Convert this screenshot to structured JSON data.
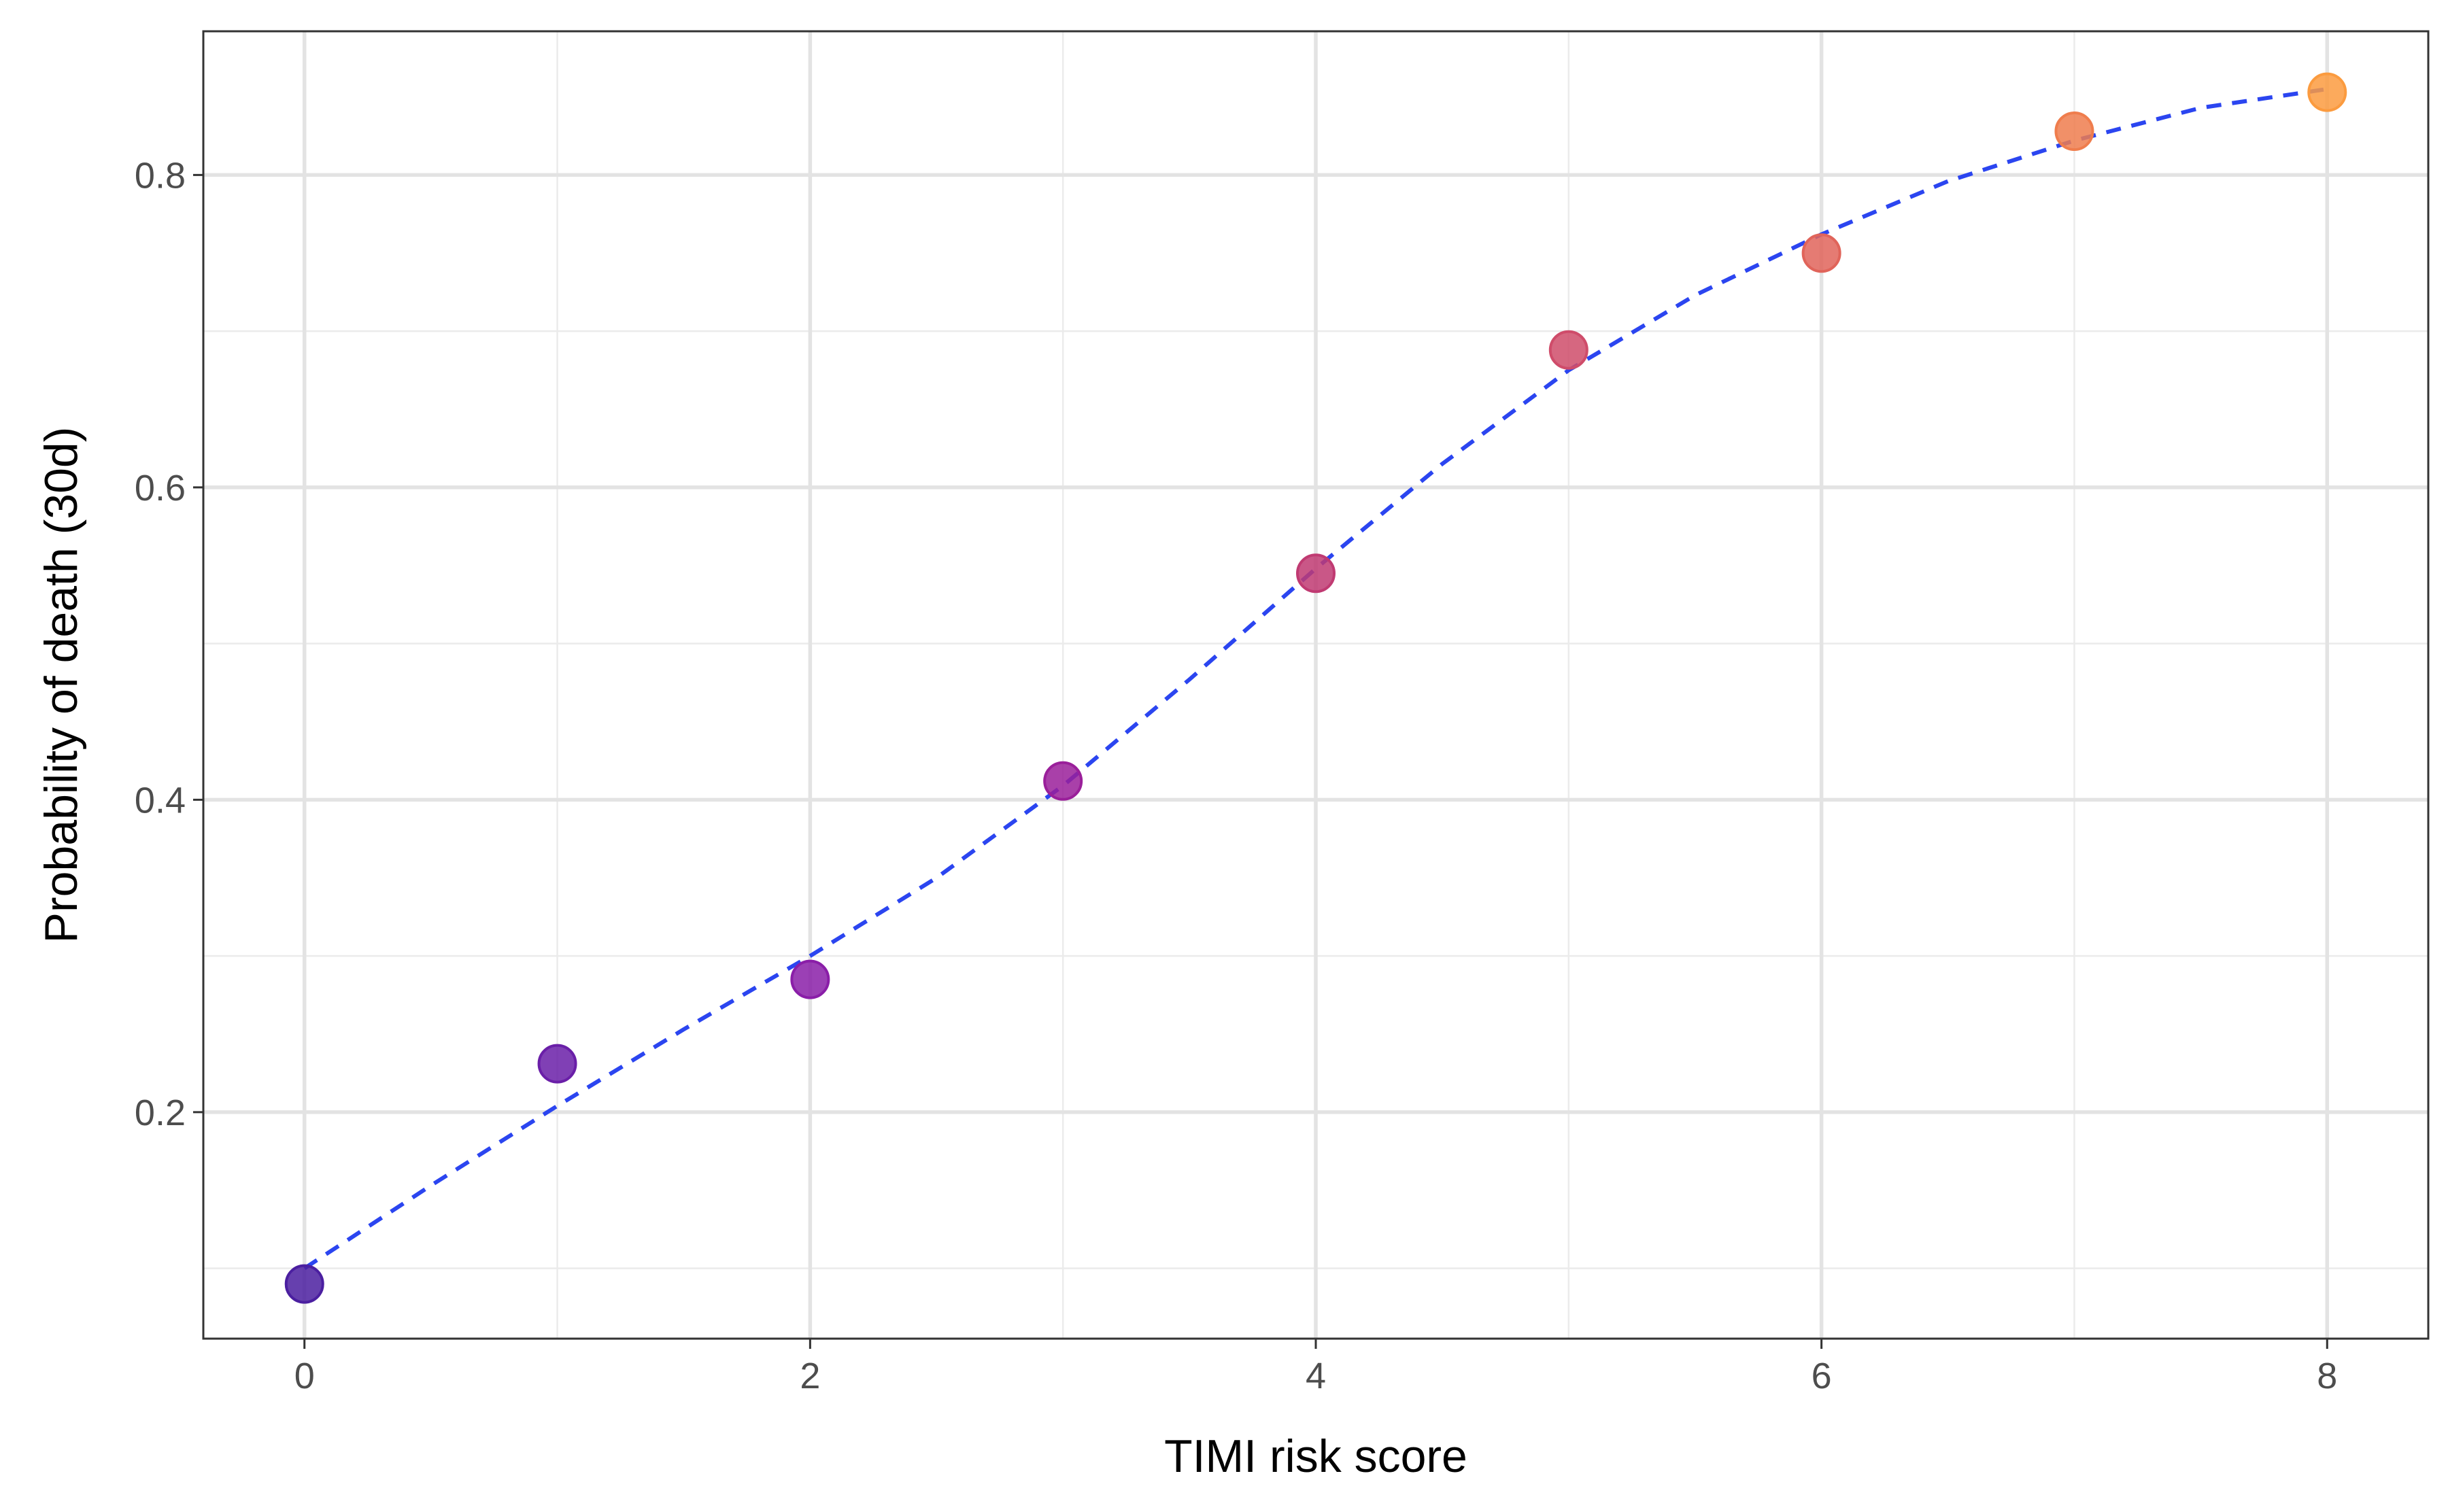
{
  "chart_data": {
    "type": "scatter",
    "title": "",
    "xlabel": "TIMI risk score",
    "ylabel": "Probability of death (30d)",
    "xlim": [
      -0.4,
      8.4
    ],
    "ylim": [
      0.055,
      0.892
    ],
    "x_ticks": [
      0,
      2,
      4,
      6,
      8
    ],
    "y_ticks": [
      0.2,
      0.4,
      0.6,
      0.8
    ],
    "x_minor": [
      1,
      3,
      5,
      7
    ],
    "y_minor": [
      0.1,
      0.3,
      0.5,
      0.7
    ],
    "x_tick_labels": [
      "0",
      "2",
      "4",
      "6",
      "8"
    ],
    "y_tick_labels": [
      "0.2",
      "0.4",
      "0.6",
      "0.8"
    ],
    "grid": true,
    "legend": "none",
    "points": {
      "x": [
        0,
        1,
        2,
        3,
        4,
        5,
        6,
        7,
        8
      ],
      "y": [
        0.09,
        0.231,
        0.285,
        0.412,
        0.545,
        0.688,
        0.75,
        0.828,
        0.853
      ],
      "colors": [
        "#4b1fa0",
        "#6a1fa8",
        "#8a1ea8",
        "#9a1f9a",
        "#c03a72",
        "#cf4c6a",
        "#e0645a",
        "#ef7d4d",
        "#fb9b3f"
      ]
    },
    "fit_line": {
      "style": "dashed",
      "color": "#2b45f0",
      "x": [
        0,
        0.5,
        1,
        1.5,
        2,
        2.5,
        3,
        3.5,
        4,
        4.5,
        5,
        5.5,
        6,
        6.5,
        7,
        7.5,
        8
      ],
      "y": [
        0.1,
        0.153,
        0.204,
        0.253,
        0.3,
        0.35,
        0.409,
        0.477,
        0.548,
        0.615,
        0.675,
        0.723,
        0.762,
        0.796,
        0.822,
        0.843,
        0.855
      ]
    }
  }
}
